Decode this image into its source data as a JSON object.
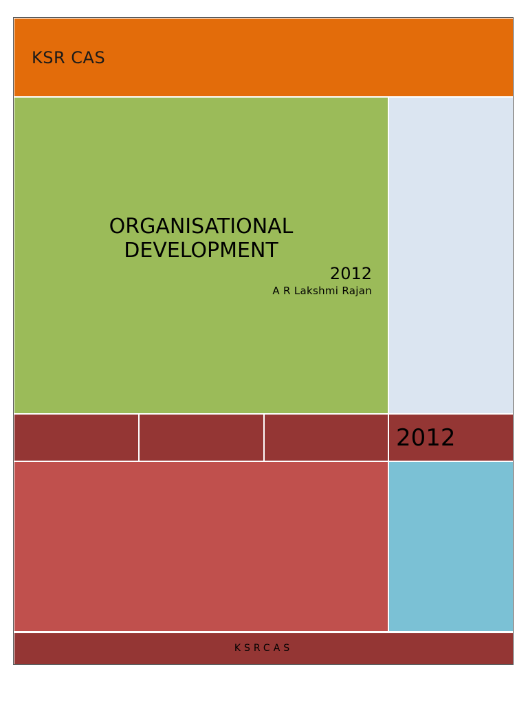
{
  "header": {
    "org_name": "KSR CAS"
  },
  "cover": {
    "title": "ORGANISATIONAL\nDEVELOPMENT",
    "year": "2012",
    "author": "A R Lakshmi Rajan"
  },
  "band": {
    "year": "2012"
  },
  "footer": {
    "text": "KSRCAS"
  },
  "colors": {
    "header": "#e36c0a",
    "title_panel": "#9bbb59",
    "side_light": "#dbe5f1",
    "band": "#943634",
    "lower_red": "#c0504d",
    "lower_blue": "#7bc1d5"
  }
}
